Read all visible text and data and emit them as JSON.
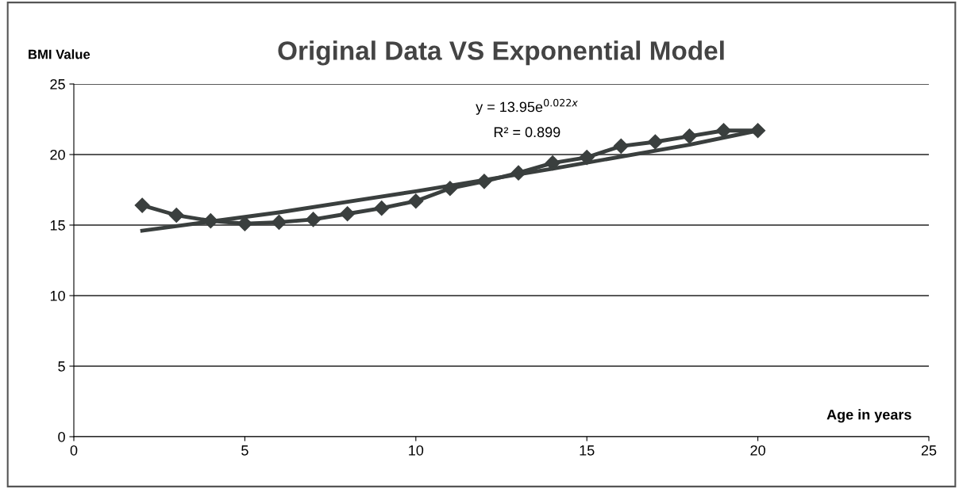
{
  "chart_data": {
    "type": "line",
    "title": "Original Data VS Exponential Model",
    "xlabel": "Age in years",
    "ylabel": "BMI Value",
    "x": [
      2,
      3,
      4,
      5,
      6,
      7,
      8,
      9,
      10,
      11,
      12,
      13,
      14,
      15,
      16,
      17,
      18,
      19,
      20
    ],
    "series": [
      {
        "color": "#3a3f3e",
        "marker": "diamond",
        "values": [
          16.4,
          15.7,
          15.3,
          15.1,
          15.2,
          15.4,
          15.8,
          16.2,
          16.7,
          17.6,
          18.1,
          18.7,
          19.4,
          19.8,
          20.6,
          20.9,
          21.3,
          21.7,
          21.7
        ]
      },
      {
        "type": "line",
        "color": "#3a3f3e",
        "marker": "none",
        "x": [
          2,
          6,
          10,
          14,
          18,
          20
        ],
        "values": [
          14.6,
          15.9,
          17.4,
          19.0,
          20.7,
          21.7
        ]
      }
    ],
    "annotations": [
      "y = 13.95e$^{0.022x}$",
      "R² = 0.899"
    ],
    "xlim": [
      0,
      25
    ],
    "xticks": [
      0,
      5,
      10,
      15,
      20,
      25
    ],
    "ylim": [
      0,
      25
    ],
    "yticks": [
      0,
      5,
      10,
      15,
      20,
      25
    ],
    "grid": "y",
    "legend": false,
    "line_style": "solid"
  }
}
